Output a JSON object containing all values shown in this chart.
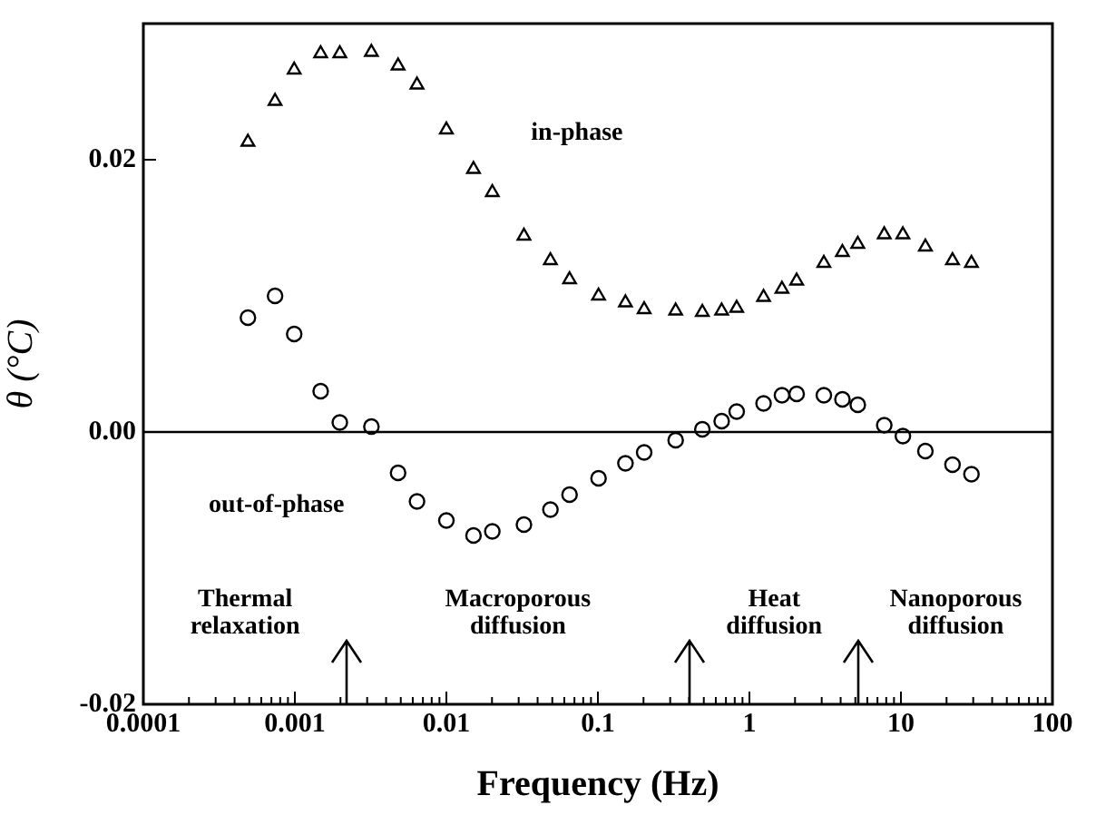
{
  "chart_data": {
    "type": "scatter",
    "xlabel": "Frequency (Hz)",
    "ylabel": "θ (°C)",
    "log": "x",
    "x": [
      0.00049,
      0.00074,
      0.00099,
      0.00148,
      0.00198,
      0.0032,
      0.0048,
      0.0064,
      0.01,
      0.0151,
      0.0201,
      0.0325,
      0.0486,
      0.065,
      0.101,
      0.152,
      0.202,
      0.326,
      0.489,
      0.656,
      0.824,
      1.24,
      1.64,
      2.05,
      3.1,
      4.11,
      5.19,
      7.76,
      10.3,
      14.5,
      21.9,
      29.2
    ],
    "series": [
      {
        "name": "in-phase",
        "color": "#000000",
        "marker": "triangle",
        "values": [
          0.0213,
          0.0243,
          0.0266,
          0.0278,
          0.0278,
          0.0279,
          0.0269,
          0.0255,
          0.0222,
          0.0193,
          0.0176,
          0.0144,
          0.0126,
          0.0112,
          0.01,
          0.0095,
          0.009,
          0.0089,
          0.0088,
          0.0089,
          0.0091,
          0.0099,
          0.0105,
          0.0111,
          0.0124,
          0.0132,
          0.0138,
          0.0145,
          0.0145,
          0.0136,
          0.0126,
          0.0124
        ]
      },
      {
        "name": "out-of-phase",
        "color": "#000000",
        "marker": "circle",
        "values": [
          0.0084,
          0.01,
          0.0072,
          0.003,
          0.0007,
          0.0004,
          -0.003,
          -0.0051,
          -0.0065,
          -0.0076,
          -0.0073,
          -0.0068,
          -0.0057,
          -0.0046,
          -0.0034,
          -0.0023,
          -0.0015,
          -0.0006,
          0.0002,
          0.0008,
          0.0015,
          0.0021,
          0.0027,
          0.0028,
          0.0027,
          0.0024,
          0.002,
          0.0005,
          -0.0003,
          -0.0014,
          -0.0024,
          -0.0031
        ]
      }
    ],
    "xlim": [
      0.0001,
      100
    ],
    "xticks": [
      0.0001,
      {
        "value": 0.0002,
        "label": null
      },
      {
        "value": 0.0003,
        "label": null
      },
      {
        "value": 0.0004,
        "label": null
      },
      {
        "value": 0.0005,
        "label": null
      },
      {
        "value": 0.0006,
        "label": null
      },
      {
        "value": 0.0007,
        "label": null
      },
      {
        "value": 0.0008,
        "label": null
      },
      {
        "value": 0.0009,
        "label": null
      },
      0.001,
      {
        "value": 0.002,
        "label": null
      },
      {
        "value": 0.003,
        "label": null
      },
      {
        "value": 0.004,
        "label": null
      },
      {
        "value": 0.005,
        "label": null
      },
      {
        "value": 0.006,
        "label": null
      },
      {
        "value": 0.007,
        "label": null
      },
      {
        "value": 0.008,
        "label": null
      },
      {
        "value": 0.009,
        "label": null
      },
      0.01,
      {
        "value": 0.02,
        "label": null
      },
      {
        "value": 0.03,
        "label": null
      },
      {
        "value": 0.04,
        "label": null
      },
      {
        "value": 0.05,
        "label": null
      },
      {
        "value": 0.06,
        "label": null
      },
      {
        "value": 0.07,
        "label": null
      },
      {
        "value": 0.08,
        "label": null
      },
      {
        "value": 0.09,
        "label": null
      },
      0.1,
      {
        "value": 0.2,
        "label": null
      },
      {
        "value": 0.3,
        "label": null
      },
      {
        "value": 0.4,
        "label": null
      },
      {
        "value": 0.5,
        "label": null
      },
      {
        "value": 0.6,
        "label": null
      },
      {
        "value": 0.7,
        "label": null
      },
      {
        "value": 0.8,
        "label": null
      },
      {
        "value": 0.9,
        "label": null
      },
      1,
      {
        "value": 2,
        "label": null
      },
      {
        "value": 3,
        "label": null
      },
      {
        "value": 4,
        "label": null
      },
      {
        "value": 5,
        "label": null
      },
      {
        "value": 6,
        "label": null
      },
      {
        "value": 7,
        "label": null
      },
      {
        "value": 8,
        "label": null
      },
      {
        "value": 9,
        "label": null
      },
      10,
      {
        "value": 20,
        "label": null
      },
      {
        "value": 30,
        "label": null
      },
      {
        "value": 40,
        "label": null
      },
      {
        "value": 50,
        "label": null
      },
      {
        "value": 60,
        "label": null
      },
      {
        "value": 70,
        "label": null
      },
      {
        "value": 80,
        "label": null
      },
      {
        "value": 90,
        "label": null
      },
      100
    ],
    "ylim": [
      -0.02,
      0.03
    ],
    "yticks": [
      {
        "value": -0.02,
        "label": "-0.02"
      },
      {
        "value": 0,
        "label": "0.00"
      },
      {
        "value": 0.02,
        "label": "0.02"
      }
    ],
    "grid": false,
    "legend": false,
    "ref_lines": [
      {
        "axis": "y",
        "value": 0,
        "label": null,
        "color": "#000000"
      },
      {
        "axis": "x",
        "value": 0.0022,
        "label": null,
        "color": "#000000"
      },
      {
        "axis": "x",
        "value": 0.4,
        "label": null,
        "color": "#000000"
      },
      {
        "axis": "x",
        "value": 5.3,
        "label": null,
        "color": "#000000"
      }
    ],
    "annotations": [
      "Thermal\nrelaxation",
      "Macroporous\ndiffusion",
      "Heat\ndiffusion",
      "Nanoporous\ndiffusion"
    ]
  }
}
